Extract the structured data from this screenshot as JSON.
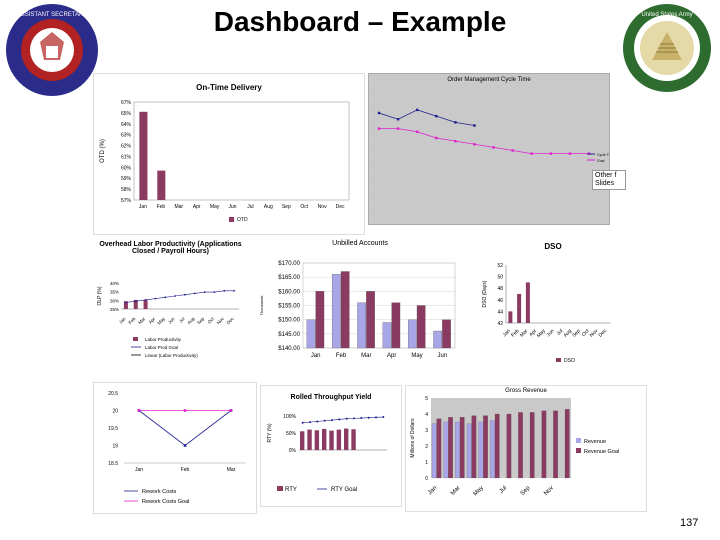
{
  "page": {
    "title": "Dashboard – Example",
    "page_number": "137"
  },
  "seals": {
    "left": "OFFICE OF THE ASSISTANT SECRETARY OF THE ARMY",
    "right": "United States Army Financial Management & Comptroller"
  },
  "colors": {
    "bar_maroon": "#8b3a62",
    "bar_lavender": "#a8a6e6",
    "series_blue": "#1f1f8f",
    "series_magenta": "#e020d0",
    "plot_gray": "#c0c0c0"
  },
  "on_time_delivery": {
    "title": "On-Time Delivery",
    "ylabel": "OTD (%)",
    "yticks": [
      "67%",
      "65%",
      "64%",
      "63%",
      "62%",
      "61%",
      "60%",
      "59%",
      "58%",
      "57%"
    ],
    "categories": [
      "Jan",
      "Feb",
      "Mar",
      "Apr",
      "May",
      "Jun",
      "Jul",
      "Aug",
      "Sep",
      "Oct",
      "Nov",
      "Dec"
    ],
    "legend": "OTD",
    "chart_data": {
      "type": "bar",
      "categories": [
        "Jan",
        "Feb",
        "Mar",
        "Apr",
        "May",
        "Jun",
        "Jul",
        "Aug",
        "Sep",
        "Oct",
        "Nov",
        "Dec"
      ],
      "values": [
        66,
        60,
        null,
        null,
        null,
        null,
        null,
        null,
        null,
        null,
        null,
        null
      ],
      "ylim": [
        57,
        67
      ]
    }
  },
  "order_mgmt": {
    "title": "Order Management Cycle Time",
    "legend": [
      "Cycle Time",
      "Goal"
    ],
    "annotation": "Other f Slides",
    "chart_data": {
      "type": "line",
      "series": [
        {
          "values": [
            6.4,
            6.0,
            6.6,
            6.2,
            5.8,
            5.6,
            null,
            null,
            null,
            null,
            null,
            null
          ]
        },
        {
          "values": [
            5.4,
            5.4,
            5.2,
            4.8,
            4.6,
            4.4,
            4.2,
            4.0,
            3.8,
            3.8,
            3.8,
            3.8
          ]
        }
      ],
      "ylim": [
        0,
        8
      ]
    }
  },
  "overhead": {
    "title": "Overhead Labor Productivity (Applications Closed / Payroll Hours)",
    "ylabel": "OLP (%)",
    "yticks": [
      "40%",
      "35%",
      "30%",
      "25%"
    ],
    "categories": [
      "Jan",
      "Feb",
      "Mar",
      "Apr",
      "May",
      "Jun",
      "Jul",
      "Aug",
      "Sep",
      "Oct",
      "Nov",
      "Dec"
    ],
    "legend": [
      "Labor Productivity",
      "Labor Prod Goal",
      "Linear (Labor Productivity)"
    ],
    "chart_data": {
      "type": "bar",
      "categories": [
        "Jan",
        "Feb",
        "Mar",
        "Apr",
        "May",
        "Jun",
        "Jul",
        "Aug",
        "Sep",
        "Oct",
        "Nov",
        "Dec"
      ],
      "values": [
        26,
        27,
        27,
        null,
        null,
        null,
        null,
        null,
        null,
        null,
        null,
        null
      ],
      "goal": [
        25,
        26,
        27,
        28,
        29,
        30,
        31,
        32,
        33,
        33,
        34,
        34
      ]
    }
  },
  "unbilled": {
    "title": "Unbilled Accounts",
    "ylabel": "Thousands",
    "yticks": [
      "$170.00",
      "$165.00",
      "$160.00",
      "$155.00",
      "$150.00",
      "$145.00",
      "$140.00"
    ],
    "categories": [
      "Jan",
      "Feb",
      "Mar",
      "Apr",
      "May",
      "Jun"
    ],
    "chart_data": {
      "type": "bar",
      "categories": [
        "Jan",
        "Feb",
        "Mar",
        "Apr",
        "May",
        "Jun"
      ],
      "series": [
        {
          "values": [
            150,
            166,
            156,
            149,
            150,
            146
          ]
        },
        {
          "values": [
            160,
            167,
            160,
            156,
            155,
            150
          ]
        }
      ],
      "ylim": [
        140,
        170
      ]
    }
  },
  "dso": {
    "title": "DSO",
    "ylabel": "DSO (Days)",
    "yticks": [
      "52",
      "50",
      "48",
      "46",
      "44",
      "42"
    ],
    "categories": [
      "Jan",
      "Feb",
      "Mar",
      "Apr",
      "May",
      "Jun",
      "Jul",
      "Aug",
      "Sep",
      "Oct",
      "Nov",
      "Dec"
    ],
    "legend": "DSO",
    "chart_data": {
      "type": "bar",
      "categories": [
        "Jan",
        "Feb",
        "Mar",
        "Apr",
        "May",
        "Jun",
        "Jul",
        "Aug",
        "Sep",
        "Oct",
        "Nov",
        "Dec"
      ],
      "values": [
        44,
        47,
        49,
        null,
        null,
        null,
        null,
        null,
        null,
        null,
        null,
        null
      ],
      "ylim": [
        42,
        52
      ]
    }
  },
  "rework": {
    "yticks": [
      "20.5",
      "20",
      "19.5",
      "19",
      "18.5"
    ],
    "categories": [
      "Jan",
      "Feb",
      "Mar"
    ],
    "legend": [
      "Rework Costs",
      "Rework Costs Goal"
    ],
    "chart_data": {
      "type": "line",
      "categories": [
        "Jan",
        "Feb",
        "Mar"
      ],
      "series": [
        {
          "values": [
            20,
            19,
            20
          ]
        },
        {
          "values": [
            20,
            20,
            20
          ]
        }
      ],
      "ylim": [
        18.5,
        20.5
      ]
    }
  },
  "rty": {
    "title": "Rolled Throughput Yield",
    "ylabel": "RTY (%)",
    "yticks": [
      "100%",
      "50%",
      "0%"
    ],
    "legend": [
      "RTY",
      "RTY Goal"
    ],
    "chart_data": {
      "type": "bar",
      "values": [
        55,
        60,
        58,
        62,
        57,
        60,
        63,
        61,
        null,
        null,
        null,
        null
      ],
      "goal": [
        80,
        82,
        84,
        86,
        88,
        90,
        92,
        93,
        94,
        95,
        96,
        97
      ],
      "ylim": [
        0,
        100
      ]
    }
  },
  "gross_revenue": {
    "title": "Gross Revenue",
    "ylabel": "Millions of Dollars",
    "yticks": [
      "5",
      "4",
      "3",
      "2",
      "1",
      "0"
    ],
    "categories": [
      "Jan",
      "Mar",
      "May",
      "Jul",
      "Sep",
      "Nov"
    ],
    "legend": [
      "Revenue",
      "Revenue Goal"
    ],
    "chart_data": {
      "type": "bar",
      "categories": [
        "Jan",
        "Feb",
        "Mar",
        "Apr",
        "May",
        "Jun",
        "Jul",
        "Aug",
        "Sep",
        "Oct",
        "Nov",
        "Dec"
      ],
      "series": [
        {
          "values": [
            3.4,
            3.5,
            3.5,
            3.4,
            3.5,
            3.6,
            null,
            null,
            null,
            null,
            null,
            null
          ]
        },
        {
          "values": [
            3.7,
            3.8,
            3.8,
            3.9,
            3.9,
            4.0,
            4.0,
            4.1,
            4.1,
            4.2,
            4.2,
            4.3
          ]
        }
      ],
      "ylim": [
        0,
        5
      ]
    }
  }
}
